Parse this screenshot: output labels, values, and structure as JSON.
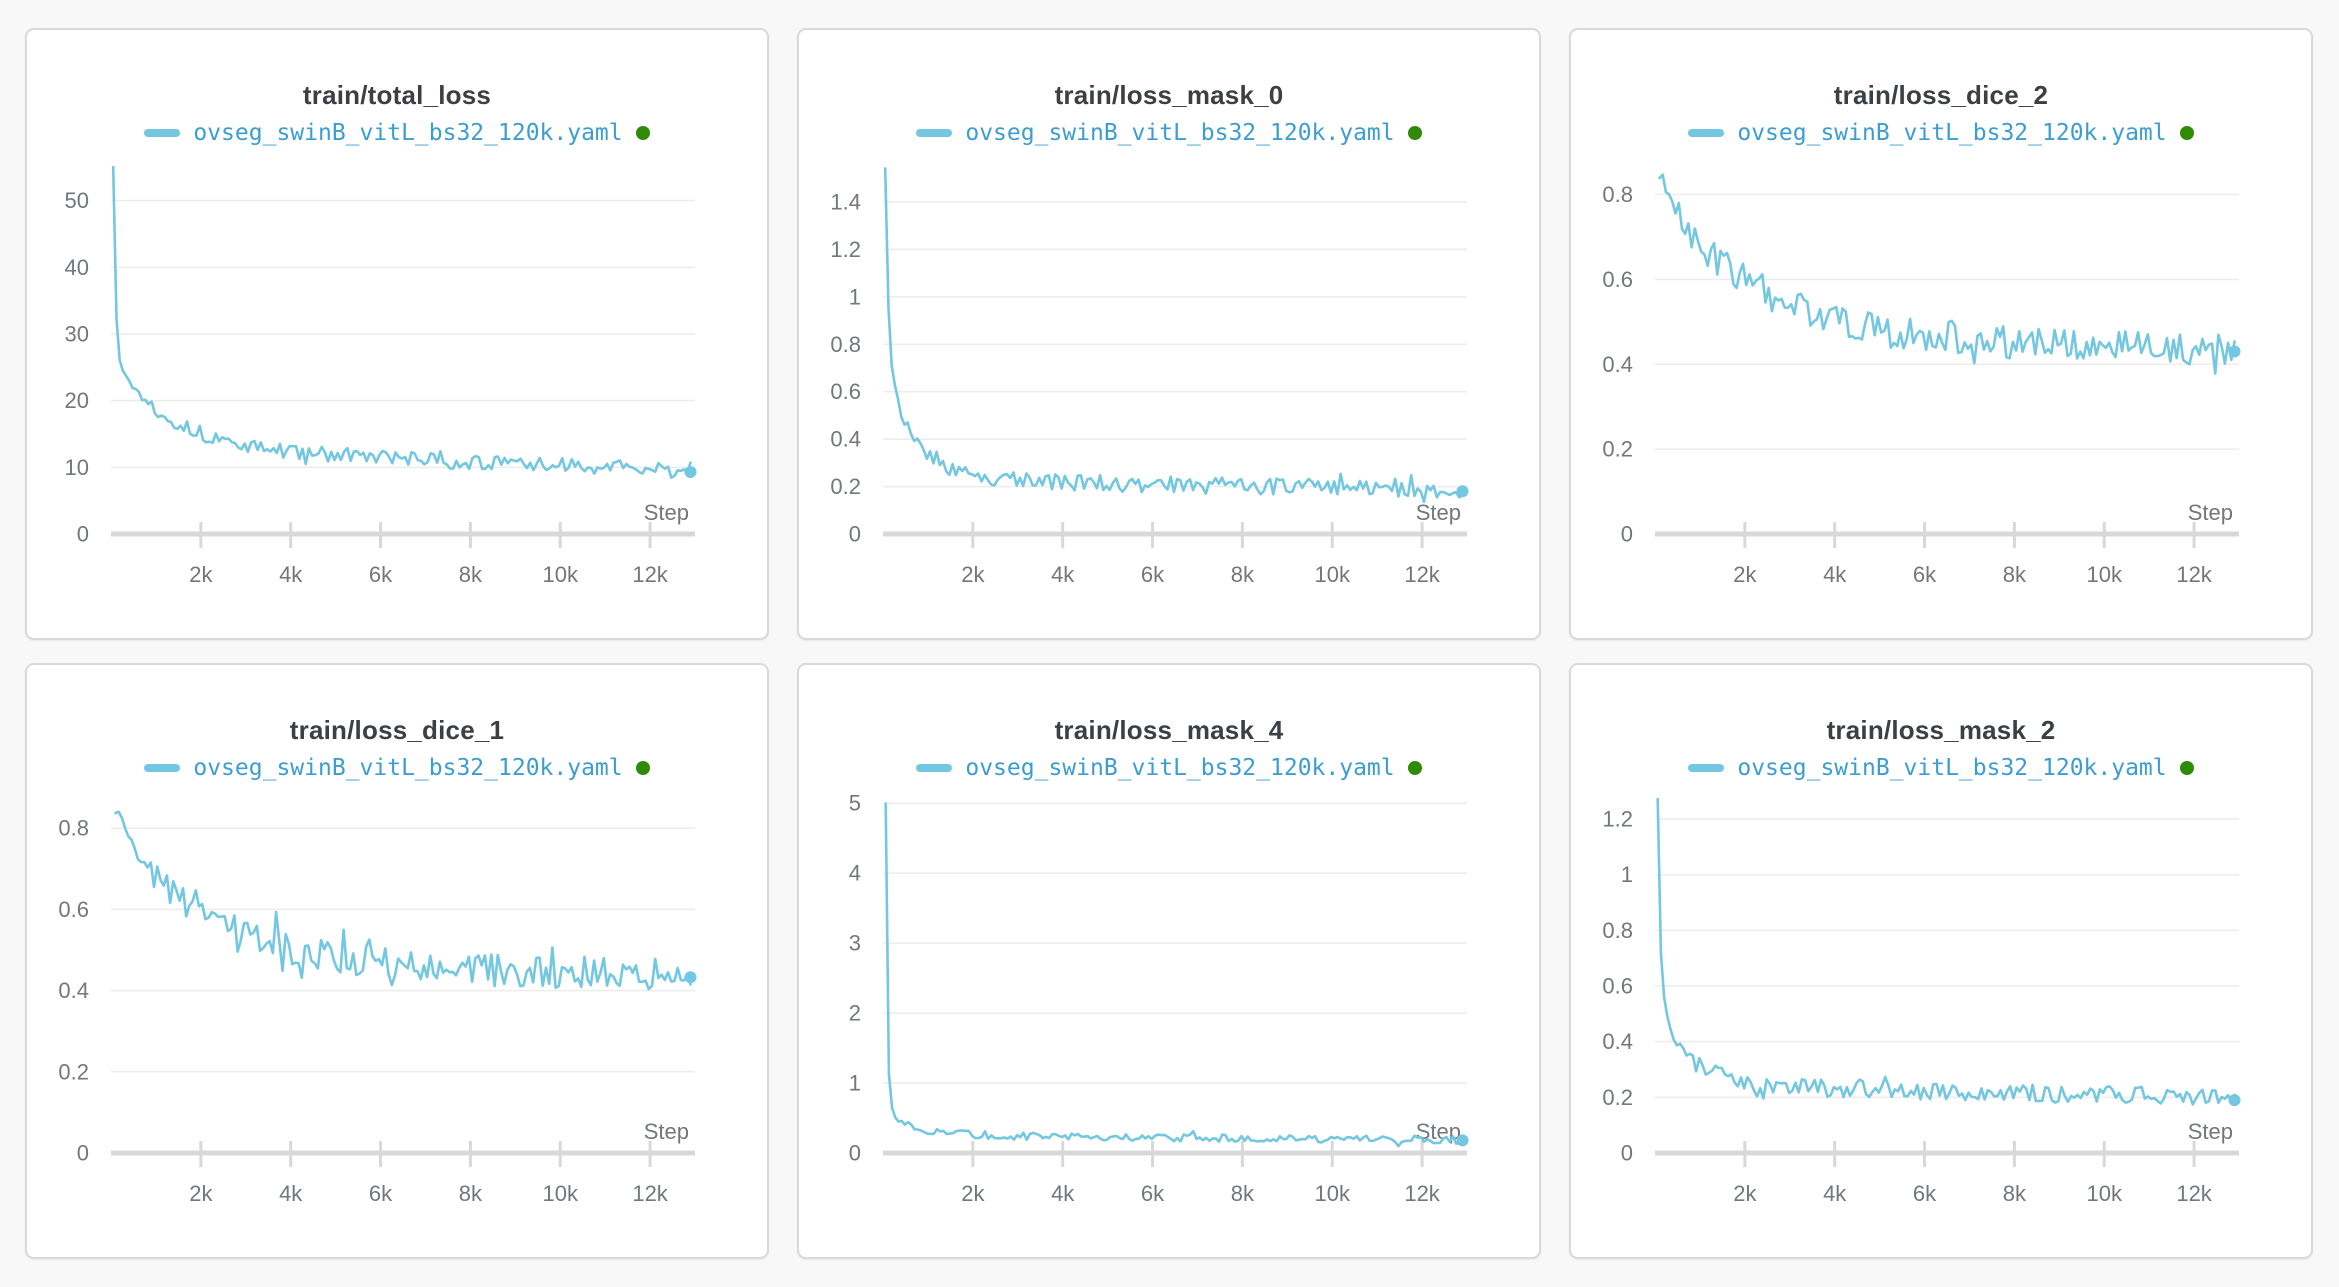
{
  "page": {
    "background": "#f8f8f8"
  },
  "theme": {
    "card_bg": "#ffffff",
    "card_border": "#d9d9d9",
    "title_color": "#3b4045",
    "tick_label_color": "#72777c",
    "grid_color": "#ececec",
    "axis_color": "#d8d8d8",
    "line_color": "#74c7e0",
    "legend_text_color": "#3c9dd0",
    "run_state_color": "#2f8a07"
  },
  "legend": {
    "label": "ovseg_swinB_vitL_bs32_120k.yaml",
    "state_icon": "running-dot"
  },
  "x_axis": {
    "label": "Step",
    "max": 13000,
    "tick_values": [
      2000,
      4000,
      6000,
      8000,
      10000,
      12000
    ],
    "tick_labels": [
      "2k",
      "4k",
      "6k",
      "8k",
      "10k",
      "12k"
    ]
  },
  "chart_data": [
    {
      "type": "line",
      "title": "train/total_loss",
      "xlabel": "Step",
      "xlim": [
        0,
        13000
      ],
      "ylim": [
        0,
        55.5
      ],
      "y_tick_values": [
        0,
        10,
        20,
        30,
        40,
        50
      ],
      "y_tick_labels": [
        "0",
        "10",
        "20",
        "30",
        "40",
        "50"
      ],
      "grid": true,
      "legend_position": "top",
      "noise_amp": 1.1,
      "end_marker": true,
      "series": [
        {
          "name": "ovseg_swinB_vitL_bs32_120k.yaml",
          "x": [
            50,
            90,
            140,
            200,
            280,
            380,
            500,
            650,
            800,
            1000,
            1250,
            1500,
            1800,
            2100,
            2400,
            2800,
            3200,
            3600,
            4000,
            4500,
            5000,
            5500,
            6000,
            6500,
            7000,
            7500,
            8000,
            8500,
            9000,
            9500,
            10000,
            10500,
            11000,
            11500,
            12000,
            12500,
            12900
          ],
          "y": [
            55,
            38,
            30,
            26.5,
            24.5,
            23,
            22,
            21,
            20,
            18.8,
            17.6,
            16.6,
            15.6,
            14.8,
            14.2,
            13.5,
            13,
            12.6,
            12.4,
            12.1,
            11.9,
            11.7,
            11.5,
            11.3,
            11.1,
            10.9,
            10.7,
            10.6,
            10.5,
            10.4,
            10.3,
            10.2,
            10.1,
            9.9,
            9.7,
            9.5,
            9.3
          ]
        }
      ]
    },
    {
      "type": "line",
      "title": "train/loss_mask_0",
      "xlabel": "Step",
      "xlim": [
        0,
        13000
      ],
      "ylim": [
        0,
        1.56
      ],
      "y_tick_values": [
        0,
        0.2,
        0.4,
        0.6,
        0.8,
        1,
        1.2,
        1.4
      ],
      "y_tick_labels": [
        "0",
        "0.2",
        "0.4",
        "0.6",
        "0.8",
        "1",
        "1.2",
        "1.4"
      ],
      "grid": true,
      "legend_position": "top",
      "noise_amp": 0.035,
      "end_marker": true,
      "series": [
        {
          "name": "ovseg_swinB_vitL_bs32_120k.yaml",
          "x": [
            50,
            90,
            140,
            200,
            280,
            380,
            500,
            650,
            800,
            1000,
            1250,
            1500,
            1800,
            2100,
            2400,
            2800,
            3200,
            3600,
            4000,
            4500,
            5000,
            5500,
            6000,
            6500,
            7000,
            7500,
            8000,
            8500,
            9000,
            9500,
            10000,
            10500,
            11000,
            11500,
            12000,
            12500,
            12900
          ],
          "y": [
            1.55,
            1.1,
            0.85,
            0.7,
            0.6,
            0.52,
            0.46,
            0.42,
            0.38,
            0.34,
            0.31,
            0.28,
            0.26,
            0.245,
            0.235,
            0.23,
            0.225,
            0.22,
            0.22,
            0.215,
            0.215,
            0.21,
            0.21,
            0.21,
            0.205,
            0.205,
            0.2,
            0.2,
            0.2,
            0.2,
            0.2,
            0.195,
            0.195,
            0.19,
            0.19,
            0.185,
            0.18
          ]
        }
      ]
    },
    {
      "type": "line",
      "title": "train/loss_dice_2",
      "xlabel": "Step",
      "xlim": [
        0,
        13000
      ],
      "ylim": [
        0,
        0.872
      ],
      "y_tick_values": [
        0,
        0.2,
        0.4,
        0.6,
        0.8
      ],
      "y_tick_labels": [
        "0",
        "0.2",
        "0.4",
        "0.6",
        "0.8"
      ],
      "grid": true,
      "legend_position": "top",
      "noise_amp": 0.04,
      "end_marker": true,
      "series": [
        {
          "name": "ovseg_swinB_vitL_bs32_120k.yaml",
          "x": [
            100,
            200,
            320,
            450,
            600,
            780,
            1000,
            1250,
            1500,
            1800,
            2100,
            2400,
            2800,
            3200,
            3600,
            4000,
            4500,
            5000,
            5500,
            6000,
            6500,
            7000,
            7500,
            8000,
            8500,
            9000,
            9500,
            10000,
            10500,
            11000,
            11500,
            12000,
            12500,
            12900
          ],
          "y": [
            0.85,
            0.83,
            0.8,
            0.77,
            0.74,
            0.71,
            0.68,
            0.66,
            0.64,
            0.62,
            0.6,
            0.58,
            0.55,
            0.53,
            0.515,
            0.5,
            0.49,
            0.48,
            0.475,
            0.47,
            0.465,
            0.46,
            0.455,
            0.45,
            0.45,
            0.45,
            0.448,
            0.447,
            0.445,
            0.443,
            0.44,
            0.437,
            0.433,
            0.43
          ]
        }
      ]
    },
    {
      "type": "line",
      "title": "train/loss_dice_1",
      "xlabel": "Step",
      "xlim": [
        0,
        13000
      ],
      "ylim": [
        0,
        0.872
      ],
      "y_tick_values": [
        0,
        0.2,
        0.4,
        0.6,
        0.8
      ],
      "y_tick_labels": [
        "0",
        "0.2",
        "0.4",
        "0.6",
        "0.8"
      ],
      "grid": true,
      "legend_position": "top",
      "noise_amp": 0.04,
      "end_marker": true,
      "series": [
        {
          "name": "ovseg_swinB_vitL_bs32_120k.yaml",
          "x": [
            100,
            200,
            320,
            450,
            600,
            780,
            1000,
            1250,
            1500,
            1800,
            2100,
            2400,
            2800,
            3200,
            3600,
            4000,
            4500,
            5000,
            5500,
            6000,
            6500,
            7000,
            7500,
            8000,
            8500,
            9000,
            9500,
            10000,
            10500,
            11000,
            11500,
            12000,
            12500,
            12900
          ],
          "y": [
            0.84,
            0.83,
            0.81,
            0.78,
            0.74,
            0.7,
            0.67,
            0.65,
            0.63,
            0.615,
            0.6,
            0.58,
            0.555,
            0.535,
            0.52,
            0.505,
            0.49,
            0.483,
            0.477,
            0.47,
            0.465,
            0.46,
            0.455,
            0.452,
            0.45,
            0.45,
            0.448,
            0.446,
            0.444,
            0.442,
            0.44,
            0.44,
            0.437,
            0.433
          ]
        }
      ]
    },
    {
      "type": "line",
      "title": "train/loss_mask_4",
      "xlabel": "Step",
      "xlim": [
        0,
        13000
      ],
      "ylim": [
        0,
        5.06
      ],
      "y_tick_values": [
        0,
        1,
        2,
        3,
        4,
        5
      ],
      "y_tick_labels": [
        "0",
        "1",
        "2",
        "3",
        "4",
        "5"
      ],
      "grid": true,
      "legend_position": "top",
      "noise_amp": 0.055,
      "end_marker": true,
      "series": [
        {
          "name": "ovseg_swinB_vitL_bs32_120k.yaml",
          "x": [
            60,
            100,
            150,
            220,
            300,
            400,
            550,
            700,
            900,
            1100,
            1400,
            1700,
            2000,
            2500,
            3000,
            3500,
            4000,
            4500,
            5000,
            6000,
            7000,
            8000,
            9000,
            10000,
            11000,
            12000,
            12900
          ],
          "y": [
            5.0,
            1.6,
            0.85,
            0.6,
            0.5,
            0.44,
            0.39,
            0.36,
            0.33,
            0.31,
            0.29,
            0.275,
            0.265,
            0.25,
            0.245,
            0.24,
            0.235,
            0.23,
            0.225,
            0.22,
            0.215,
            0.21,
            0.205,
            0.2,
            0.2,
            0.195,
            0.18
          ]
        }
      ]
    },
    {
      "type": "line",
      "title": "train/loss_mask_2",
      "xlabel": "Step",
      "xlim": [
        0,
        13000
      ],
      "ylim": [
        0,
        1.272
      ],
      "y_tick_values": [
        0,
        0.2,
        0.4,
        0.6,
        0.8,
        1,
        1.2
      ],
      "y_tick_labels": [
        "0",
        "0.2",
        "0.4",
        "0.6",
        "0.8",
        "1",
        "1.2"
      ],
      "grid": true,
      "legend_position": "top",
      "noise_amp": 0.032,
      "end_marker": true,
      "series": [
        {
          "name": "ovseg_swinB_vitL_bs32_120k.yaml",
          "x": [
            60,
            100,
            150,
            220,
            300,
            400,
            550,
            700,
            900,
            1100,
            1400,
            1700,
            2000,
            2500,
            3000,
            3500,
            4000,
            4500,
            5000,
            6000,
            7000,
            8000,
            9000,
            10000,
            11000,
            12000,
            12900
          ],
          "y": [
            1.27,
            0.85,
            0.65,
            0.54,
            0.47,
            0.42,
            0.38,
            0.35,
            0.32,
            0.3,
            0.28,
            0.265,
            0.255,
            0.245,
            0.24,
            0.235,
            0.23,
            0.23,
            0.225,
            0.22,
            0.22,
            0.215,
            0.21,
            0.21,
            0.205,
            0.2,
            0.19
          ]
        }
      ]
    }
  ]
}
